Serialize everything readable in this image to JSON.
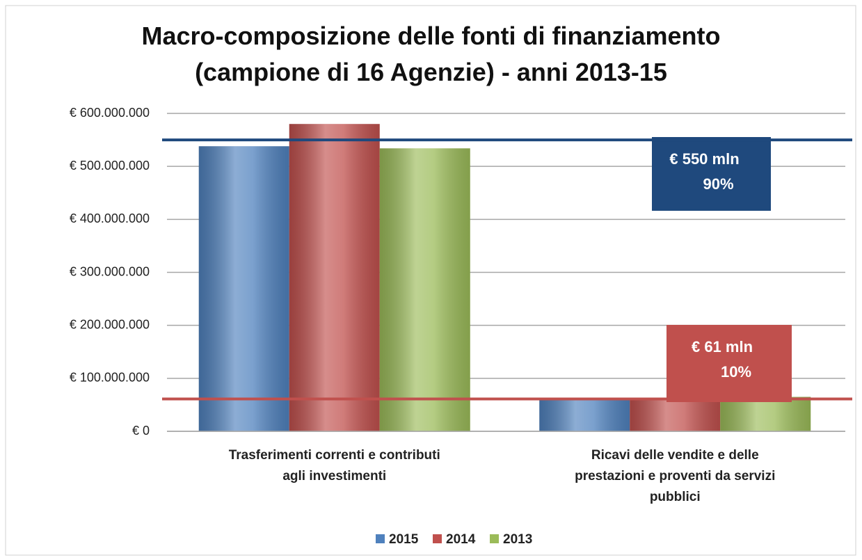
{
  "chart_data": {
    "type": "bar",
    "title": "Macro-composizione  delle fonti di finanziamento\n(campione di 16 Agenzie) - anni 2013-15",
    "categories": [
      "Trasferimenti correnti e contributi\nagli investimenti",
      "Ricavi delle vendite e delle\nprestazioni e proventi da servizi\npubblici"
    ],
    "series": [
      {
        "name": "2015",
        "color": "#4f81bd",
        "values": [
          538000000,
          59000000
        ]
      },
      {
        "name": "2014",
        "color": "#c0504d",
        "values": [
          580000000,
          59000000
        ]
      },
      {
        "name": "2013",
        "color": "#9bbb59",
        "values": [
          534000000,
          65000000
        ]
      }
    ],
    "ylim": [
      0,
      600000000
    ],
    "yticks": [
      {
        "value": 0,
        "label": "€ 0"
      },
      {
        "value": 100000000,
        "label": "€ 100.000.000"
      },
      {
        "value": 200000000,
        "label": "€ 200.000.000"
      },
      {
        "value": 300000000,
        "label": "€ 300.000.000"
      },
      {
        "value": 400000000,
        "label": "€ 400.000.000"
      },
      {
        "value": 500000000,
        "label": "€ 500.000.000"
      },
      {
        "value": 600000000,
        "label": "€ 600.000.000"
      }
    ],
    "grid": true,
    "legend": "bottom",
    "annotations": [
      {
        "value": 550000000,
        "label": "€ 550 mln",
        "share": "90%",
        "color": "#1f497d"
      },
      {
        "value": 61000000,
        "label": "€ 61 mln",
        "share": "10%",
        "color": "#c0504d"
      }
    ]
  }
}
